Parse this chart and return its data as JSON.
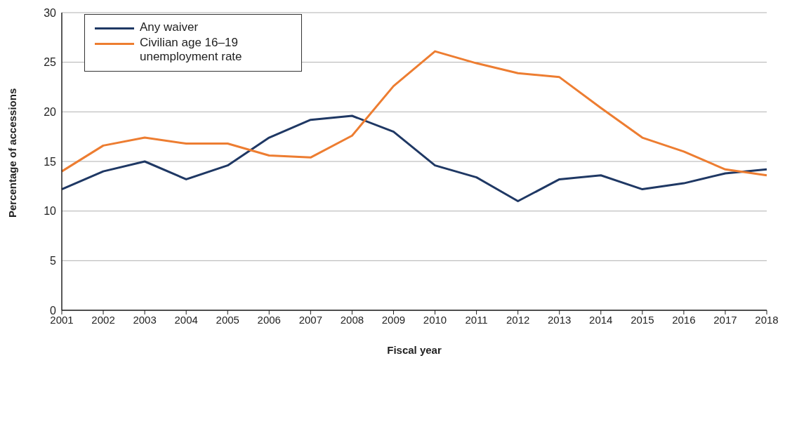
{
  "chart_data": {
    "type": "line",
    "xlabel": "Fiscal year",
    "ylabel": "Percentage of accessions",
    "categories": [
      "2001",
      "2002",
      "2003",
      "2004",
      "2005",
      "2006",
      "2007",
      "2008",
      "2009",
      "2010",
      "2011",
      "2012",
      "2013",
      "2014",
      "2015",
      "2016",
      "2017",
      "2018"
    ],
    "series": [
      {
        "name": "Any waiver",
        "color": "#1f3864",
        "values": [
          12.2,
          14.0,
          15.0,
          13.2,
          14.6,
          17.4,
          19.2,
          19.6,
          18.0,
          14.6,
          13.4,
          11.0,
          13.2,
          13.6,
          12.2,
          12.8,
          13.8,
          14.2
        ]
      },
      {
        "name": "Civilian age 16–19 unemployment rate",
        "color": "#ed7d31",
        "values": [
          14.0,
          16.6,
          17.4,
          16.8,
          16.8,
          15.6,
          15.4,
          17.6,
          22.6,
          26.1,
          24.9,
          23.9,
          23.5,
          20.4,
          17.4,
          16.0,
          14.2,
          13.6
        ]
      }
    ],
    "ylim": [
      0,
      30
    ],
    "yticks": [
      0,
      5,
      10,
      15,
      20,
      25,
      30
    ],
    "grid": "y",
    "legend": "top left",
    "marker": "none",
    "line_style": "solid"
  }
}
